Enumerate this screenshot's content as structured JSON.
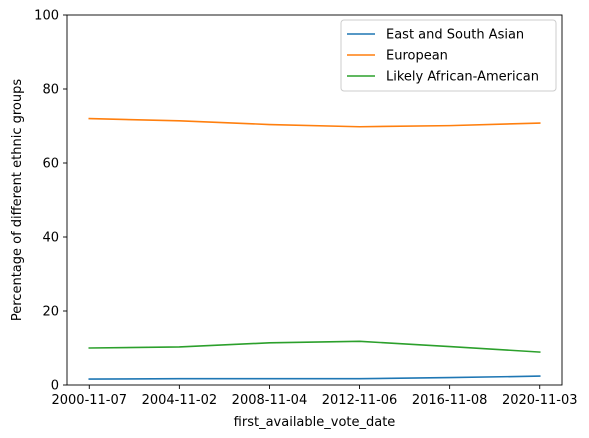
{
  "chart_data": {
    "type": "line",
    "title": "",
    "xlabel": "first_available_vote_date",
    "ylabel": "Percentage of different ethnic groups",
    "x": [
      "2000-11-07",
      "2004-11-02",
      "2008-11-04",
      "2012-11-06",
      "2016-11-08",
      "2020-11-03"
    ],
    "ylim": [
      0,
      100
    ],
    "yticks": [
      0,
      20,
      40,
      60,
      80,
      100
    ],
    "grid": false,
    "legend_position": "top-right",
    "series": [
      {
        "name": "East and South Asian",
        "color": "#1f77b4",
        "values": [
          1.6,
          1.7,
          1.7,
          1.7,
          2.0,
          2.4
        ]
      },
      {
        "name": "European",
        "color": "#ff7f0e",
        "values": [
          72.0,
          71.4,
          70.4,
          69.8,
          70.1,
          70.8
        ]
      },
      {
        "name": "Likely African-American",
        "color": "#2ca02c",
        "values": [
          10.0,
          10.3,
          11.4,
          11.8,
          10.4,
          8.9
        ]
      }
    ]
  }
}
